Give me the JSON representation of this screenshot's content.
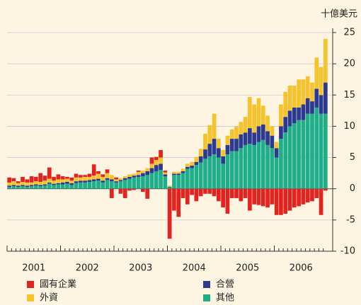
{
  "chart_data": {
    "type": "stacked_bar",
    "y_axis_label": "十億美元",
    "categories": [
      "2001",
      null,
      null,
      null,
      null,
      null,
      null,
      null,
      null,
      null,
      null,
      null,
      "2002",
      null,
      null,
      null,
      null,
      null,
      null,
      null,
      null,
      null,
      null,
      null,
      "2003",
      null,
      null,
      null,
      null,
      null,
      null,
      null,
      null,
      null,
      null,
      null,
      "2004",
      null,
      null,
      null,
      null,
      null,
      null,
      null,
      null,
      null,
      null,
      null,
      "2005",
      null,
      null,
      null,
      null,
      null,
      null,
      null,
      null,
      null,
      null,
      null,
      "2006",
      null,
      null,
      null,
      null,
      null,
      null,
      null,
      null,
      null,
      null,
      null
    ],
    "series": [
      {
        "name": "其他",
        "color": "#1fae8a",
        "values": [
          0.3,
          0.4,
          0.3,
          0.4,
          0.3,
          0.4,
          0.5,
          0.4,
          0.5,
          0.8,
          0.6,
          0.7,
          0.7,
          0.8,
          0.6,
          0.9,
          1.0,
          1.0,
          1.1,
          1.2,
          1.3,
          1.0,
          1.4,
          1.2,
          1.0,
          1.2,
          1.4,
          1.6,
          1.8,
          1.9,
          2.0,
          2.2,
          2.5,
          2.8,
          3.0,
          2.0,
          0.2,
          2.2,
          2.2,
          2.5,
          3.2,
          3.3,
          3.8,
          4.2,
          4.8,
          5.2,
          5.5,
          5.0,
          4.0,
          5.5,
          6.0,
          6.0,
          6.5,
          7.0,
          7.2,
          7.0,
          7.5,
          7.8,
          7.0,
          6.5,
          5.0,
          8.0,
          9.0,
          10.0,
          10.5,
          11.0,
          11.0,
          12.0,
          12.0,
          13.0,
          12.0,
          12.0
        ]
      },
      {
        "name": "合營",
        "color": "#2b3a8f",
        "values": [
          0.2,
          0.2,
          0.2,
          0.2,
          0.2,
          0.2,
          0.2,
          0.2,
          0.2,
          0.2,
          0.2,
          0.2,
          0.3,
          0.3,
          0.3,
          0.3,
          0.3,
          0.3,
          0.3,
          0.3,
          0.3,
          0.3,
          0.3,
          0.3,
          0.2,
          0.2,
          0.3,
          0.3,
          0.3,
          0.3,
          0.5,
          0.6,
          0.8,
          1.0,
          1.0,
          0.3,
          0.1,
          0.2,
          0.2,
          0.3,
          0.3,
          0.4,
          0.5,
          1.0,
          1.5,
          2.0,
          2.5,
          1.5,
          1.2,
          1.5,
          2.0,
          2.0,
          2.2,
          2.0,
          2.5,
          2.0,
          2.5,
          2.5,
          2.2,
          2.0,
          1.5,
          2.0,
          2.5,
          2.5,
          2.5,
          2.0,
          2.5,
          2.5,
          2.0,
          3.0,
          3.0,
          5.0
        ]
      },
      {
        "name": "外資",
        "color": "#f6c32c",
        "values": [
          0.5,
          0.6,
          0.4,
          0.5,
          0.5,
          0.4,
          0.5,
          0.5,
          0.6,
          0.6,
          0.5,
          0.6,
          0.5,
          0.5,
          0.4,
          0.6,
          0.5,
          0.6,
          0.5,
          0.6,
          0.8,
          0.6,
          0.8,
          0.7,
          0.3,
          0.3,
          0.3,
          0.4,
          0.3,
          0.5,
          0.4,
          0.5,
          0.7,
          0.8,
          1.0,
          0.3,
          0.2,
          0.3,
          0.3,
          0.4,
          0.5,
          0.6,
          0.8,
          1.2,
          2.5,
          3.0,
          4.0,
          1.5,
          1.0,
          1.5,
          1.5,
          2.0,
          2.0,
          2.5,
          5.0,
          4.5,
          4.5,
          3.0,
          2.5,
          1.5,
          1.0,
          3.5,
          4.0,
          4.0,
          3.5,
          4.5,
          4.0,
          3.5,
          3.0,
          5.0,
          4.5,
          7.0
        ]
      },
      {
        "name": "國有企業",
        "color": "#e3231f",
        "values": [
          0.8,
          0.5,
          0.3,
          0.8,
          0.5,
          1.0,
          0.7,
          1.4,
          0.8,
          1.8,
          0.6,
          0.8,
          0.5,
          0.3,
          0.5,
          0.6,
          0.4,
          0.3,
          0.5,
          1.8,
          0.4,
          0.4,
          0.6,
          -1.5,
          0.3,
          -0.8,
          -1.5,
          -0.3,
          -0.2,
          0.2,
          -0.5,
          -1.6,
          1.0,
          0.5,
          1.2,
          0.3,
          -8.0,
          -3.5,
          -4.5,
          -1.5,
          -2.5,
          -1.0,
          -2.0,
          -1.2,
          -0.8,
          -0.8,
          -1.2,
          -2.0,
          -3.0,
          -4.0,
          -1.5,
          -1.5,
          -2.0,
          -1.5,
          -3.5,
          -2.5,
          -2.6,
          -2.8,
          -3.0,
          -2.5,
          -4.2,
          -4.2,
          -4.0,
          -3.5,
          -3.0,
          -2.8,
          -2.5,
          -2.2,
          -2.0,
          -1.5,
          -4.2,
          -0.3
        ]
      }
    ],
    "ylim": [
      -10,
      25
    ],
    "yticks": [
      -10,
      -5,
      0,
      5,
      10,
      15,
      20,
      25
    ],
    "grid": true
  }
}
